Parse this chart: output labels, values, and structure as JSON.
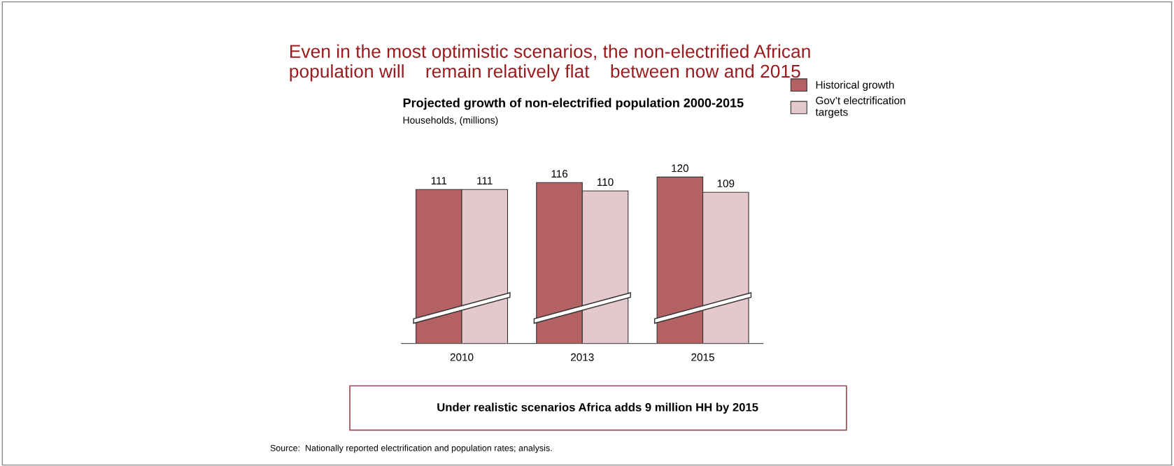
{
  "chart_data": {
    "type": "bar",
    "title": "Projected growth of non-electrified population 2000-2015",
    "subtitle": "Households, (millions)",
    "categories": [
      "2010",
      "2013",
      "2015"
    ],
    "series": [
      {
        "name": "Historical growth",
        "color": "#b36163",
        "values": [
          111,
          116,
          120
        ]
      },
      {
        "name": "Gov’t electrification\ntargets",
        "color": "#e5c8cc",
        "values": [
          111,
          110,
          109
        ]
      }
    ],
    "data_labels": true,
    "grid": false,
    "legend": "top right",
    "annotations": [
      "Even in the most optimistic scenarios, the non-electrified African\npopulation will    remain relatively flat    between now and 2015",
      "Under realistic scenarios Africa adds 9 million HH by 2015",
      "Source:  Nationally reported electrification and population rates; analysis."
    ]
  }
}
